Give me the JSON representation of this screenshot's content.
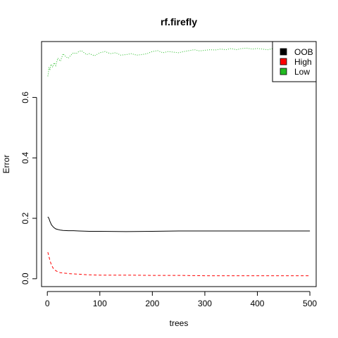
{
  "chart_data": {
    "type": "line",
    "title": "rf.firefly",
    "xlabel": "trees",
    "ylabel": "Error",
    "xlim": [
      -11,
      512
    ],
    "ylim": [
      -0.026,
      0.785
    ],
    "xticks": [
      0,
      100,
      200,
      300,
      400,
      500
    ],
    "xtick_labels": [
      "0",
      "100",
      "200",
      "300",
      "400",
      "500"
    ],
    "yticks": [
      0.0,
      0.2,
      0.4,
      0.6
    ],
    "ytick_labels": [
      "0.0",
      "0.2",
      "0.4",
      "0.6"
    ],
    "grid": false,
    "legend_position": "top-right",
    "series": [
      {
        "name": "OOB",
        "color": "#000000",
        "dash": "solid",
        "x": [
          1,
          3,
          5,
          8,
          12,
          16,
          20,
          25,
          30,
          40,
          50,
          60,
          80,
          100,
          150,
          200,
          250,
          300,
          350,
          400,
          450,
          500
        ],
        "y": [
          0.205,
          0.2,
          0.19,
          0.178,
          0.17,
          0.165,
          0.163,
          0.161,
          0.16,
          0.159,
          0.159,
          0.158,
          0.157,
          0.157,
          0.156,
          0.157,
          0.158,
          0.158,
          0.158,
          0.158,
          0.158,
          0.158
        ]
      },
      {
        "name": "High",
        "color": "#ff0000",
        "dash": "dashed",
        "x": [
          1,
          3,
          5,
          8,
          12,
          16,
          20,
          25,
          30,
          40,
          50,
          60,
          80,
          100,
          150,
          200,
          250,
          300,
          350,
          400,
          450,
          500
        ],
        "y": [
          0.088,
          0.075,
          0.06,
          0.045,
          0.032,
          0.027,
          0.023,
          0.02,
          0.019,
          0.017,
          0.016,
          0.015,
          0.013,
          0.012,
          0.012,
          0.011,
          0.011,
          0.01,
          0.01,
          0.01,
          0.01,
          0.01
        ]
      },
      {
        "name": "Low",
        "color": "#22bb22",
        "dash": "dotted",
        "x": [
          1,
          2,
          3,
          5,
          7,
          10,
          13,
          16,
          20,
          25,
          30,
          35,
          40,
          45,
          50,
          55,
          60,
          65,
          70,
          75,
          80,
          90,
          100,
          110,
          120,
          130,
          140,
          150,
          160,
          170,
          180,
          190,
          200,
          210,
          220,
          230,
          240,
          250,
          260,
          270,
          280,
          290,
          300,
          310,
          320,
          330,
          340,
          350,
          360,
          370,
          380,
          390,
          400,
          410,
          420,
          430,
          440,
          450,
          460,
          470,
          480,
          490,
          500
        ],
        "y": [
          0.67,
          0.68,
          0.7,
          0.69,
          0.71,
          0.7,
          0.715,
          0.705,
          0.73,
          0.72,
          0.745,
          0.735,
          0.73,
          0.74,
          0.748,
          0.745,
          0.752,
          0.755,
          0.748,
          0.742,
          0.745,
          0.738,
          0.748,
          0.752,
          0.745,
          0.748,
          0.74,
          0.742,
          0.745,
          0.74,
          0.742,
          0.745,
          0.752,
          0.755,
          0.748,
          0.752,
          0.75,
          0.748,
          0.752,
          0.755,
          0.758,
          0.754,
          0.756,
          0.758,
          0.757,
          0.76,
          0.758,
          0.762,
          0.758,
          0.762,
          0.763,
          0.76,
          0.762,
          0.76,
          0.758,
          0.762,
          0.76,
          0.762,
          0.76,
          0.76,
          0.76,
          0.762,
          0.762
        ]
      }
    ],
    "legend": [
      "OOB",
      "High",
      "Low"
    ]
  }
}
